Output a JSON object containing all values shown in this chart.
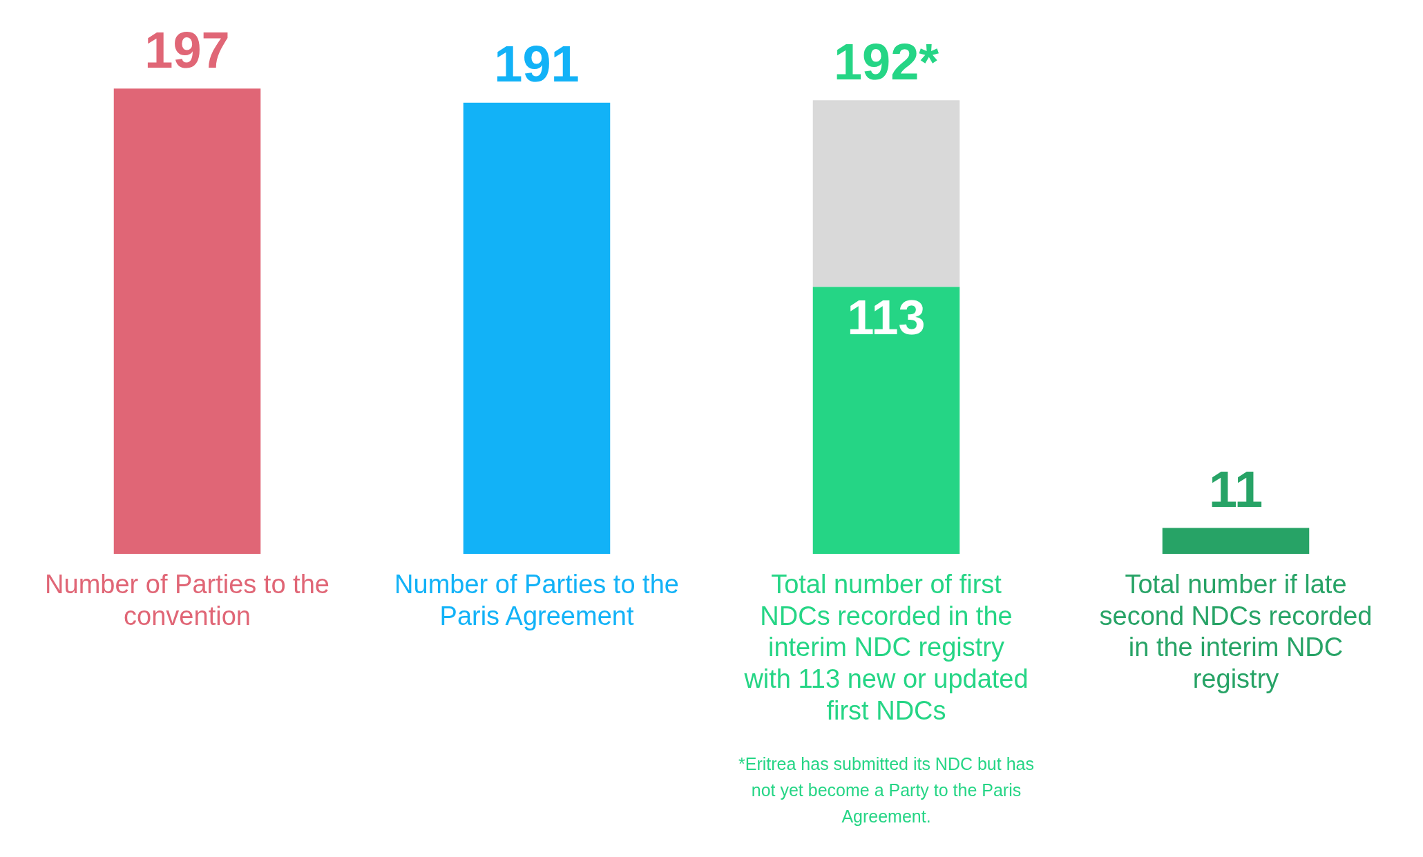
{
  "chart_data": {
    "type": "bar",
    "stacked": true,
    "categories": [
      "Number of Parties to the convention",
      "Number of Parties to the Paris Agreement",
      "Total number of first NDCs recorded in the interim NDC registry with 113 new or updated first NDCs",
      "Total number if late second NDCs recorded in the interim NDC registry"
    ],
    "series": [
      {
        "colors": [
          "#e06676",
          "#12b2f7",
          "#25d585",
          "#27a366"
        ],
        "values": [
          197,
          191,
          113,
          11
        ],
        "value_labels": [
          null,
          null,
          "113",
          null
        ]
      },
      {
        "color": "#d9d9d9",
        "values": [
          null,
          null,
          79,
          null
        ]
      }
    ],
    "totals": [
      "197",
      "191",
      "192*",
      "11"
    ],
    "annotations": [
      "*Eritrea has submitted its NDC but has not yet become a Party to the Paris Agreement."
    ],
    "grid": false,
    "legend": false
  }
}
